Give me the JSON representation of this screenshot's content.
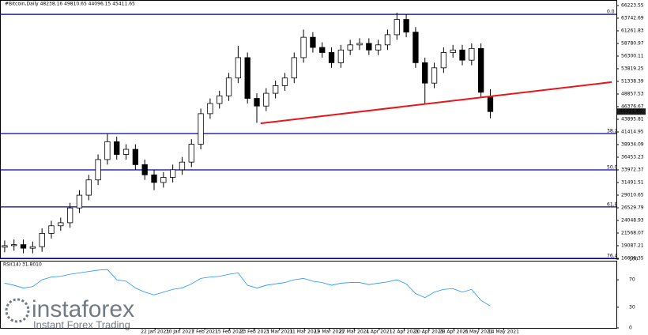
{
  "chart_data": {
    "type": "candlestick",
    "title": "#Bitcoin,Daily  48238.16 49810.65 44096.15 45411.65",
    "open": [
      18800,
      19100,
      19300,
      18600,
      18900,
      21500,
      23000,
      23600,
      26500,
      29000,
      32000,
      36000,
      39500,
      37000,
      38000,
      35000,
      33000,
      31500,
      32500,
      34000,
      35500,
      39000,
      45000,
      47000,
      48500,
      52000,
      56000,
      48000,
      46500,
      49000,
      50500,
      52000,
      56000,
      60000,
      58000,
      57000,
      55000,
      57500,
      58500,
      58800,
      57500,
      58500,
      60500,
      63500,
      61000,
      55000,
      51000,
      54000,
      57000,
      57500,
      55500,
      57800,
      48238.16
    ],
    "high": [
      20100,
      20300,
      20300,
      19900,
      22500,
      24000,
      24600,
      27500,
      30000,
      33000,
      37000,
      41000,
      40500,
      39000,
      39000,
      36000,
      34000,
      33500,
      35000,
      36500,
      40000,
      46000,
      48000,
      49500,
      53000,
      58300,
      57000,
      49000,
      50000,
      51500,
      53000,
      57000,
      61500,
      61000,
      59000,
      58000,
      58500,
      59500,
      59800,
      59800,
      59500,
      61500,
      64800,
      64500,
      62000,
      56000,
      55000,
      58000,
      58500,
      58500,
      58800,
      58800,
      49810.65
    ],
    "low": [
      17800,
      18100,
      17600,
      17600,
      17900,
      20500,
      22000,
      22600,
      25500,
      28000,
      31000,
      35000,
      36000,
      36000,
      34000,
      32000,
      30000,
      30500,
      31500,
      33000,
      34500,
      38000,
      44000,
      46000,
      47500,
      51000,
      47000,
      43200,
      45500,
      48000,
      49500,
      51000,
      55000,
      57000,
      56000,
      54000,
      54000,
      56500,
      57500,
      56500,
      56500,
      57500,
      59500,
      60000,
      54000,
      47000,
      50000,
      53000,
      56000,
      54500,
      54500,
      48200,
      44096.15
    ],
    "close": [
      19100,
      19300,
      18600,
      18900,
      21500,
      23000,
      23600,
      26500,
      29000,
      32000,
      36000,
      39500,
      37000,
      38000,
      35000,
      33000,
      31500,
      32500,
      34000,
      35500,
      39000,
      45000,
      47000,
      48500,
      52000,
      56000,
      48000,
      46500,
      49000,
      50500,
      52000,
      56000,
      60000,
      58000,
      57000,
      55000,
      57500,
      58500,
      58800,
      57500,
      58500,
      60500,
      63500,
      61000,
      55000,
      51000,
      54000,
      57000,
      57500,
      55500,
      57800,
      49200,
      45411.65
    ],
    "ylim": [
      16606.35,
      66223.55
    ],
    "yticks": [
      {
        "value": 66223.55,
        "label": "66223.55"
      },
      {
        "value": 63742.69,
        "label": "63742.69"
      },
      {
        "value": 61261.83,
        "label": "61261.83"
      },
      {
        "value": 58780.97,
        "label": "58780.97"
      },
      {
        "value": 56300.11,
        "label": "56300.11"
      },
      {
        "value": 53819.25,
        "label": "53819.25"
      },
      {
        "value": 51338.39,
        "label": "51338.39"
      },
      {
        "value": 48857.53,
        "label": "48857.53"
      },
      {
        "value": 46376.67,
        "label": "46376.67"
      },
      {
        "value": 43895.81,
        "label": "43895.81"
      },
      {
        "value": 41414.95,
        "label": "41414.95"
      },
      {
        "value": 38934.09,
        "label": "38934.09"
      },
      {
        "value": 36453.23,
        "label": "36453.23"
      },
      {
        "value": 33972.37,
        "label": "33972.37"
      },
      {
        "value": 31491.51,
        "label": "31491.51"
      },
      {
        "value": 29010.65,
        "label": "29010.65"
      },
      {
        "value": 26529.79,
        "label": "26529.79"
      },
      {
        "value": 24048.93,
        "label": "24048.93"
      },
      {
        "value": 21568.07,
        "label": "21568.07"
      },
      {
        "value": 19087.21,
        "label": "19087.21"
      },
      {
        "value": 16606.35,
        "label": "16606.35"
      }
    ],
    "xlim": [
      0,
      66
    ],
    "xticks": [
      {
        "value": 16.6,
        "label": "22 Jan 2021"
      },
      {
        "value": 19.27,
        "label": "30 Jan 2021"
      },
      {
        "value": 21.93,
        "label": "7 Feb 2021"
      },
      {
        "value": 24.6,
        "label": "15 Feb 2021"
      },
      {
        "value": 27.27,
        "label": "23 Feb 2021"
      },
      {
        "value": 29.93,
        "label": "3 Mar 2021"
      },
      {
        "value": 32.6,
        "label": "11 Mar 2021"
      },
      {
        "value": 35.27,
        "label": "19 Mar 2021"
      },
      {
        "value": 37.93,
        "label": "27 Mar 2021"
      },
      {
        "value": 40.6,
        "label": "4 Apr 2021"
      },
      {
        "value": 43.27,
        "label": "12 Apr 2021"
      },
      {
        "value": 45.93,
        "label": "20 Apr 2021"
      },
      {
        "value": 48.6,
        "label": "28 Apr 2021"
      },
      {
        "value": 51.27,
        "label": "6 May 2021"
      },
      {
        "value": 53.93,
        "label": "14 May 2021"
      }
    ],
    "fib_levels": [
      {
        "value": 64500,
        "label": "0.0"
      },
      {
        "value": 41100,
        "label": "38.2"
      },
      {
        "value": 33970,
        "label": "50.0"
      },
      {
        "value": 26700,
        "label": "61.8"
      },
      {
        "value": 16606.35,
        "label": "76.4"
      }
    ],
    "fib_color": "#0000a8",
    "trendline": {
      "color": "#e8161b",
      "start": [
        27.9,
        43100
      ],
      "end": [
        65.5,
        51200
      ]
    },
    "bull_color": "#ffffff",
    "bear_color": "#000000",
    "rsi": {
      "label": "RSI(14) 31.8010",
      "color": "#1e90ff",
      "ylim": [
        0,
        100
      ],
      "yticks": [
        100,
        70,
        30,
        0
      ],
      "values": [
        65,
        62,
        58,
        60,
        70,
        74,
        75,
        78,
        80,
        82,
        84,
        85,
        70,
        68,
        58,
        52,
        48,
        52,
        56,
        58,
        64,
        72,
        74,
        75,
        78,
        80,
        62,
        58,
        62,
        64,
        66,
        70,
        72,
        68,
        66,
        62,
        65,
        66,
        66,
        63,
        65,
        67,
        70,
        64,
        50,
        44,
        52,
        56,
        57,
        52,
        56,
        40,
        31.8
      ]
    },
    "logo": {
      "name": "instaforex",
      "tagline": "Instant Forex Trading"
    }
  }
}
